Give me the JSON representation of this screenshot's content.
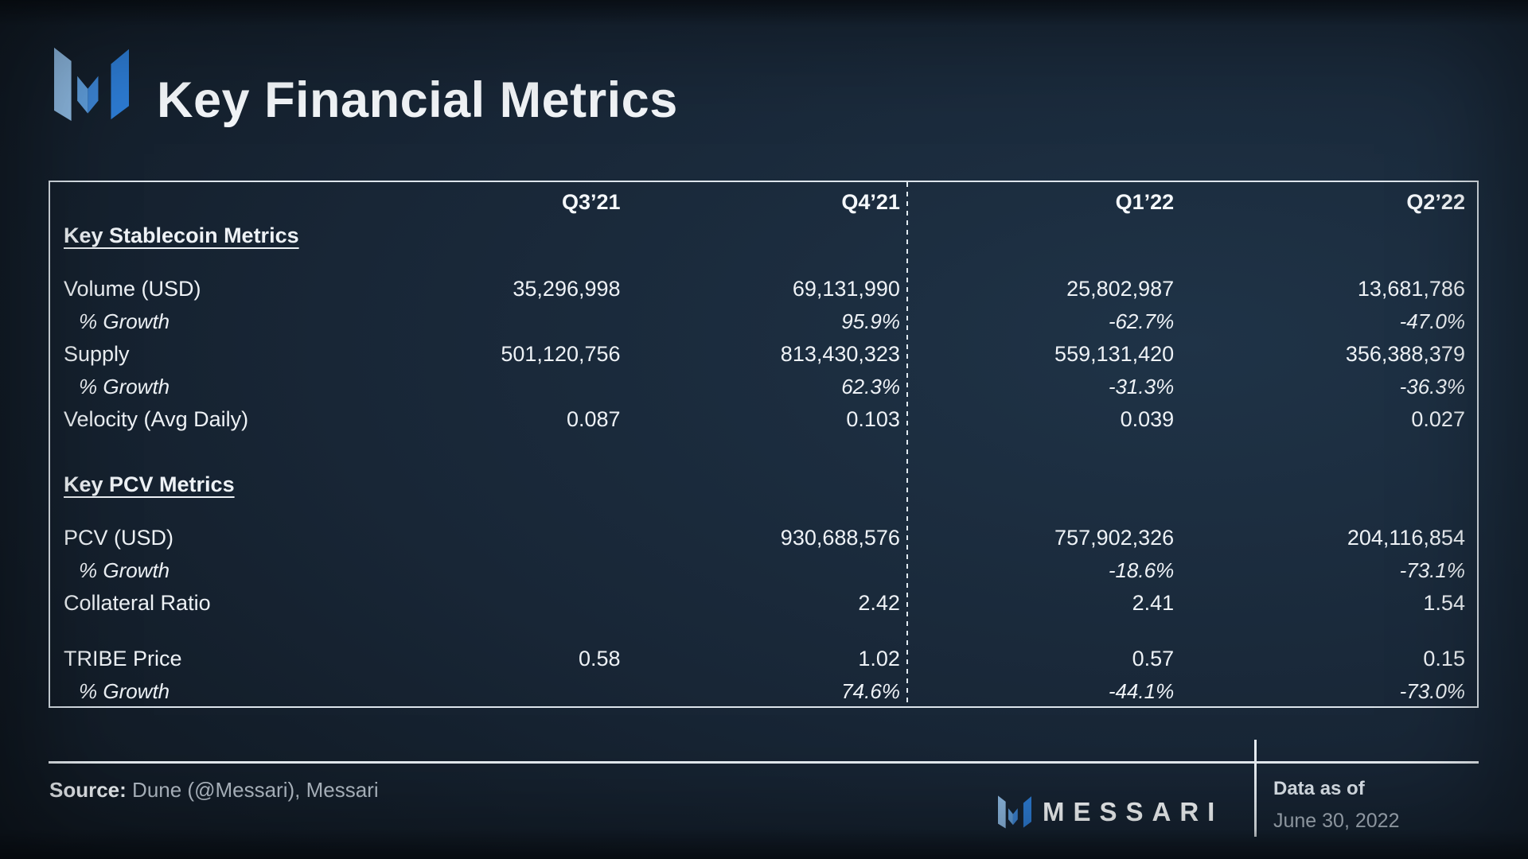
{
  "header": {
    "title": "Key Financial Metrics",
    "logo_icon": "messari-logo-icon"
  },
  "brand_colors": {
    "logo_light_blue": "#8db9e2",
    "logo_mid_blue_left": "#5f9dda",
    "logo_mid_blue_right": "#3c84d3",
    "logo_bright_blue": "#2d7cd4",
    "border_white": "#dde5ec"
  },
  "table": {
    "columns": [
      "Q3’21",
      "Q4’21",
      "Q1’22",
      "Q2’22"
    ],
    "sections": [
      {
        "heading": "Key Stablecoin Metrics",
        "rows": [
          {
            "label": "Volume (USD)",
            "indent": false,
            "gap_above": false,
            "values": [
              "35,296,998",
              "69,131,990",
              "25,802,987",
              "13,681,786"
            ]
          },
          {
            "label": "% Growth",
            "indent": true,
            "gap_above": false,
            "values": [
              "",
              "95.9%",
              "-62.7%",
              "-47.0%"
            ]
          },
          {
            "label": "Supply",
            "indent": false,
            "gap_above": false,
            "values": [
              "501,120,756",
              "813,430,323",
              "559,131,420",
              "356,388,379"
            ]
          },
          {
            "label": "% Growth",
            "indent": true,
            "gap_above": false,
            "values": [
              "",
              "62.3%",
              "-31.3%",
              "-36.3%"
            ]
          },
          {
            "label": "Velocity (Avg Daily)",
            "indent": false,
            "gap_above": false,
            "values": [
              "0.087",
              "0.103",
              "0.039",
              "0.027"
            ]
          }
        ]
      },
      {
        "heading": "Key PCV Metrics",
        "rows": [
          {
            "label": "PCV (USD)",
            "indent": false,
            "gap_above": false,
            "values": [
              "",
              "930,688,576",
              "757,902,326",
              "204,116,854"
            ]
          },
          {
            "label": "% Growth",
            "indent": true,
            "gap_above": false,
            "values": [
              "",
              "",
              "-18.6%",
              "-73.1%"
            ]
          },
          {
            "label": "Collateral Ratio",
            "indent": false,
            "gap_above": false,
            "values": [
              "",
              "2.42",
              "2.41",
              "1.54"
            ]
          },
          {
            "label": "TRIBE Price",
            "indent": false,
            "gap_above": true,
            "values": [
              "0.58",
              "1.02",
              "0.57",
              "0.15"
            ]
          },
          {
            "label": "% Growth",
            "indent": true,
            "gap_above": false,
            "values": [
              "",
              "74.6%",
              "-44.1%",
              "-73.0%"
            ]
          }
        ]
      }
    ]
  },
  "footer": {
    "source_label": "Source:",
    "source_text": "Dune (@Messari), Messari",
    "brand_wordmark": "MESSARI",
    "data_as_of_label": "Data as of",
    "data_as_of_date": "June 30, 2022"
  }
}
